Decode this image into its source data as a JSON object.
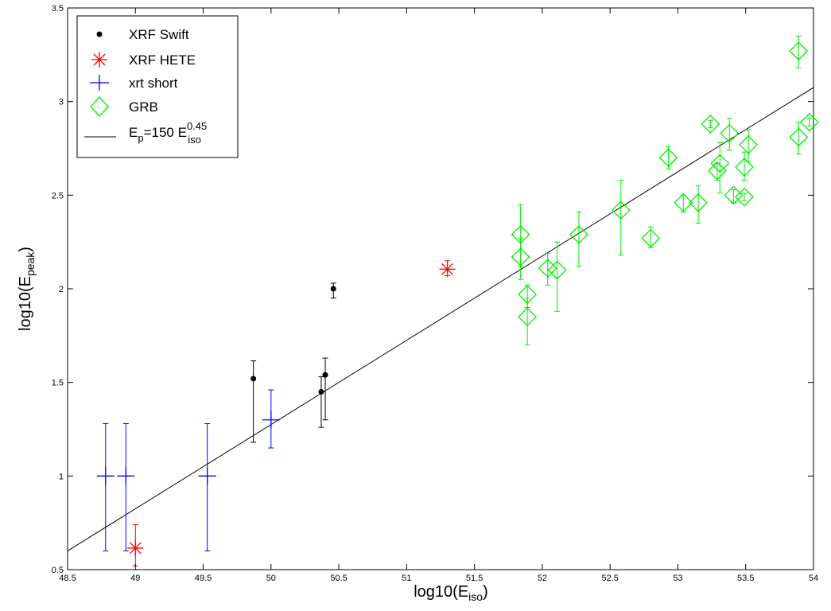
{
  "chart_data": {
    "type": "scatter",
    "xlabel": {
      "base": "log10(E",
      "sub": "iso",
      "close": ")"
    },
    "ylabel": {
      "base": "log10(E",
      "sub": "peak",
      "close": ")"
    },
    "xlim": [
      48.5,
      54
    ],
    "ylim": [
      0.5,
      3.5
    ],
    "x_ticks": [
      48.5,
      49,
      49.5,
      50,
      50.5,
      51,
      51.5,
      52,
      52.5,
      53,
      53.5,
      54
    ],
    "x_tick_labels": [
      "48.5",
      "49",
      "49.5",
      "50",
      "50.5",
      "51",
      "51.5",
      "52",
      "52.5",
      "53",
      "53.5",
      "54"
    ],
    "y_ticks": [
      0.5,
      1,
      1.5,
      2,
      2.5,
      3,
      3.5
    ],
    "y_tick_labels": [
      "0.5",
      "1",
      "1.5",
      "2",
      "2.5",
      "3",
      "3.5"
    ],
    "grid": false,
    "legend_position": "top-left",
    "fit_line": {
      "label": {
        "a": "E",
        "a_sub": "p",
        "b": "=150 E",
        "b_sub": "iso",
        "b_sup": "0.45"
      },
      "color": "#000000",
      "points": [
        [
          48.5,
          0.6
        ],
        [
          54,
          3.075
        ]
      ]
    },
    "series": [
      {
        "name": "XRF Swift",
        "marker": "dot",
        "color": "#000000",
        "points": [
          {
            "x": 49.87,
            "y": 1.52,
            "ylo": 1.18,
            "yhi": 1.615
          },
          {
            "x": 50.37,
            "y": 1.45,
            "ylo": 1.26,
            "yhi": 1.53
          },
          {
            "x": 50.4,
            "y": 1.54,
            "ylo": 1.3,
            "yhi": 1.63
          },
          {
            "x": 50.46,
            "y": 2.0,
            "ylo": 1.95,
            "yhi": 2.03
          }
        ]
      },
      {
        "name": "XRF HETE",
        "marker": "asterisk",
        "color": "#ff0000",
        "points": [
          {
            "x": 49.0,
            "y": 0.615,
            "ylo": 0.52,
            "yhi": 0.74
          },
          {
            "x": 51.3,
            "y": 2.105,
            "ylo": 2.07,
            "yhi": 2.15
          }
        ]
      },
      {
        "name": "xrt short",
        "marker": "plus",
        "color": "#0000ff",
        "points": [
          {
            "x": 48.78,
            "y": 1.0,
            "ylo": 0.6,
            "yhi": 1.28
          },
          {
            "x": 48.93,
            "y": 1.0,
            "ylo": 0.6,
            "yhi": 1.28
          },
          {
            "x": 49.53,
            "y": 1.0,
            "ylo": 0.6,
            "yhi": 1.28
          },
          {
            "x": 50.0,
            "y": 1.3,
            "ylo": 1.15,
            "yhi": 1.46
          }
        ]
      },
      {
        "name": "GRB",
        "marker": "diamond",
        "color": "#00ee00",
        "points": [
          {
            "x": 51.84,
            "y": 2.29,
            "ylo": 2.12,
            "yhi": 2.45
          },
          {
            "x": 51.84,
            "y": 2.17,
            "ylo": 2.05,
            "yhi": 2.27
          },
          {
            "x": 51.89,
            "y": 1.97,
            "ylo": 1.9,
            "yhi": 2.02
          },
          {
            "x": 51.89,
            "y": 1.85,
            "ylo": 1.7,
            "yhi": 1.95
          },
          {
            "x": 52.04,
            "y": 2.11,
            "ylo": 2.02,
            "yhi": 2.19
          },
          {
            "x": 52.11,
            "y": 2.1,
            "ylo": 1.88,
            "yhi": 2.25
          },
          {
            "x": 52.27,
            "y": 2.29,
            "ylo": 2.12,
            "yhi": 2.41
          },
          {
            "x": 52.58,
            "y": 2.42,
            "ylo": 2.18,
            "yhi": 2.58
          },
          {
            "x": 52.8,
            "y": 2.27,
            "ylo": 2.22,
            "yhi": 2.33
          },
          {
            "x": 52.93,
            "y": 2.7,
            "ylo": 2.64,
            "yhi": 2.76
          },
          {
            "x": 53.04,
            "y": 2.46,
            "ylo": 2.41,
            "yhi": 2.5
          },
          {
            "x": 53.15,
            "y": 2.46,
            "ylo": 2.35,
            "yhi": 2.55
          },
          {
            "x": 53.24,
            "y": 2.88,
            "ylo": 2.86,
            "yhi": 2.9
          },
          {
            "x": 53.29,
            "y": 2.63,
            "ylo": 2.58,
            "yhi": 2.67
          },
          {
            "x": 53.31,
            "y": 2.67,
            "ylo": 2.51,
            "yhi": 2.78
          },
          {
            "x": 53.38,
            "y": 2.83,
            "ylo": 2.74,
            "yhi": 2.91
          },
          {
            "x": 53.41,
            "y": 2.5,
            "ylo": 2.46,
            "yhi": 2.53
          },
          {
            "x": 53.49,
            "y": 2.65,
            "ylo": 2.58,
            "yhi": 2.73
          },
          {
            "x": 53.49,
            "y": 2.49,
            "ylo": 2.47,
            "yhi": 2.51
          },
          {
            "x": 53.52,
            "y": 2.77,
            "ylo": 2.68,
            "yhi": 2.85
          },
          {
            "x": 53.89,
            "y": 3.27,
            "ylo": 3.18,
            "yhi": 3.35
          },
          {
            "x": 53.89,
            "y": 2.81,
            "ylo": 2.72,
            "yhi": 2.89
          },
          {
            "x": 53.97,
            "y": 2.89,
            "ylo": 2.87,
            "yhi": 2.91
          }
        ]
      }
    ]
  }
}
